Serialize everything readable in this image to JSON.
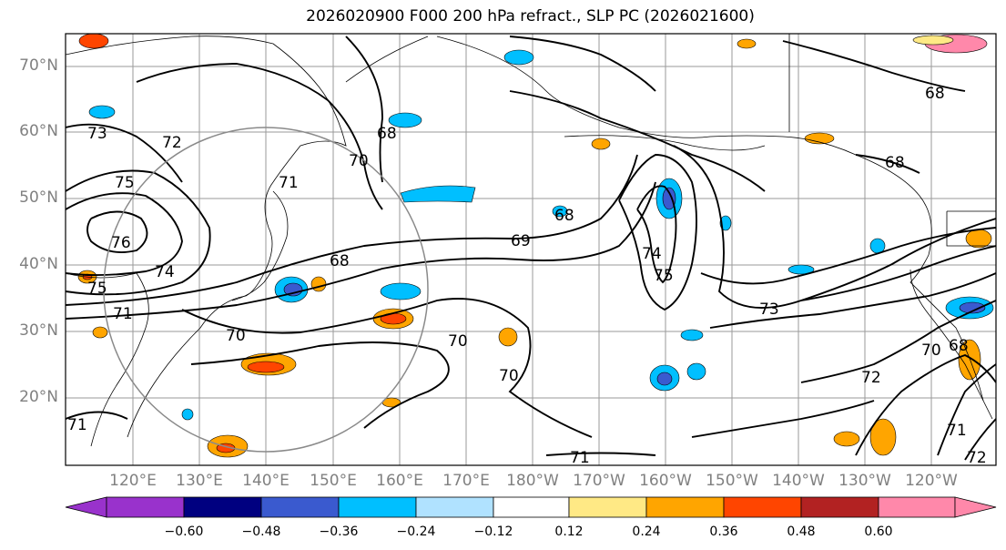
{
  "title": "2026020900 F000 200 hPa refract., SLP PC (2026021600)",
  "lat_labels": [
    "70°N",
    "60°N",
    "50°N",
    "40°N",
    "30°N",
    "20°N"
  ],
  "lon_labels": [
    "120°E",
    "130°E",
    "140°E",
    "150°E",
    "160°E",
    "170°E",
    "180°W",
    "170°W",
    "160°W",
    "150°W",
    "140°W",
    "130°W",
    "120°W"
  ],
  "contour_labels": [
    "73",
    "72",
    "75",
    "76",
    "74",
    "75",
    "71",
    "70",
    "68",
    "71",
    "68",
    "70",
    "69",
    "68",
    "70",
    "70",
    "71",
    "74",
    "75",
    "73",
    "68",
    "68",
    "72",
    "70",
    "71",
    "71",
    "72",
    "68"
  ],
  "colorbar": {
    "ticks": [
      "−0.60",
      "−0.48",
      "−0.36",
      "−0.24",
      "−0.12",
      "0.12",
      "0.24",
      "0.36",
      "0.48",
      "0.60"
    ],
    "colors": [
      "#9932cc",
      "#000080",
      "#3a5acf",
      "#00bfff",
      "#b0e2ff",
      "#ffffff",
      "#ffe985",
      "#ffa500",
      "#ff4500",
      "#b22222",
      "#ff88aa"
    ]
  }
}
